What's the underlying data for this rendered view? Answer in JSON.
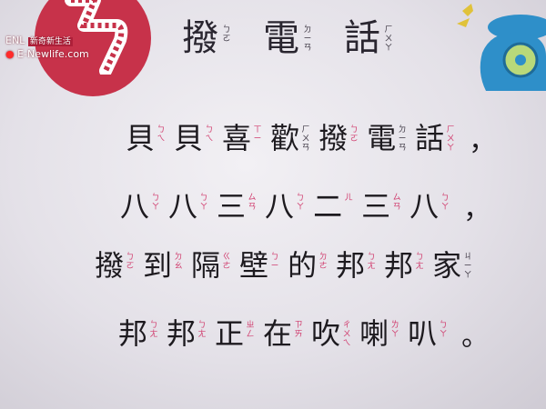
{
  "watermark": {
    "tag": "新奇新生活",
    "site": "E-Newlife.com",
    "prefix": "ENL"
  },
  "title": [
    {
      "hanzi": "撥",
      "zhuyin": "ㄅㄛ"
    },
    {
      "hanzi": "電",
      "zhuyin": "ㄉㄧㄢ"
    },
    {
      "hanzi": "話",
      "zhuyin": "ㄏㄨㄚ"
    }
  ],
  "lines": [
    {
      "chars": [
        {
          "hanzi": "貝",
          "zhuyin": "ㄅㄟ"
        },
        {
          "hanzi": "貝",
          "zhuyin": "ㄅㄟ"
        },
        {
          "hanzi": "喜",
          "zhuyin": "ㄒㄧ"
        },
        {
          "hanzi": "歡",
          "zhuyin": "ㄏㄨㄢ"
        },
        {
          "hanzi": "撥",
          "zhuyin": "ㄅㄛ"
        },
        {
          "hanzi": "電",
          "zhuyin": "ㄉㄧㄢ"
        },
        {
          "hanzi": "話",
          "zhuyin": "ㄏㄨㄚ"
        }
      ],
      "punct": "，"
    },
    {
      "chars": [
        {
          "hanzi": "八",
          "zhuyin": "ㄅㄚ"
        },
        {
          "hanzi": "八",
          "zhuyin": "ㄅㄚ"
        },
        {
          "hanzi": "三",
          "zhuyin": "ㄙㄢ"
        },
        {
          "hanzi": "八",
          "zhuyin": "ㄅㄚ"
        },
        {
          "hanzi": "二",
          "zhuyin": "ㄦ"
        },
        {
          "hanzi": "三",
          "zhuyin": "ㄙㄢ"
        },
        {
          "hanzi": "八",
          "zhuyin": "ㄅㄚ"
        }
      ],
      "punct": "，"
    },
    {
      "chars": [
        {
          "hanzi": "撥",
          "zhuyin": "ㄅㄛ"
        },
        {
          "hanzi": "到",
          "zhuyin": "ㄉㄠ"
        },
        {
          "hanzi": "隔",
          "zhuyin": "ㄍㄜ"
        },
        {
          "hanzi": "壁",
          "zhuyin": "ㄅㄧ"
        },
        {
          "hanzi": "的",
          "zhuyin": "ㄉㄜ"
        },
        {
          "hanzi": "邦",
          "zhuyin": "ㄅㄤ"
        },
        {
          "hanzi": "邦",
          "zhuyin": "ㄅㄤ"
        },
        {
          "hanzi": "家",
          "zhuyin": "ㄐㄧㄚ"
        }
      ],
      "punct": ""
    },
    {
      "chars": [
        {
          "hanzi": "邦",
          "zhuyin": "ㄅㄤ"
        },
        {
          "hanzi": "邦",
          "zhuyin": "ㄅㄤ"
        },
        {
          "hanzi": "正",
          "zhuyin": "ㄓㄥ"
        },
        {
          "hanzi": "在",
          "zhuyin": "ㄗㄞ"
        },
        {
          "hanzi": "吹",
          "zhuyin": "ㄔㄨㄟ"
        },
        {
          "hanzi": "喇",
          "zhuyin": "ㄌㄚ"
        },
        {
          "hanzi": "叭",
          "zhuyin": "ㄅㄚ"
        }
      ],
      "punct": "。"
    }
  ],
  "colors": {
    "zhuyin_accent": "#d0396b",
    "zhuyin_dark": "#3a3440",
    "badge": "#c7324a",
    "phone": "#2e8fc9"
  }
}
